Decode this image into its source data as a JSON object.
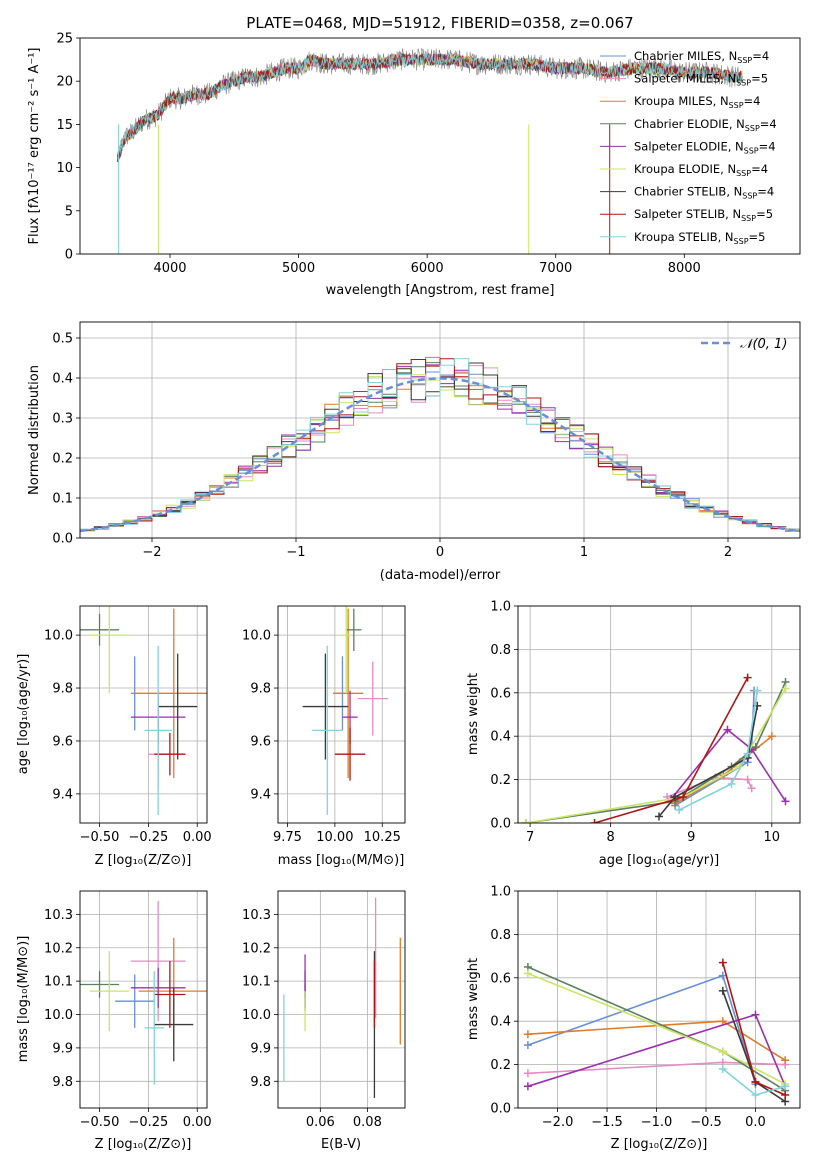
{
  "chart_data": [
    {
      "type": "line",
      "panel": "spectrum",
      "title": "PLATE=0468, MJD=51912, FIBERID=0358, z=0.067",
      "xlabel": "wavelength [Angstrom, rest frame]",
      "ylabel": "Flux [fλ10⁻¹⁷ erg cm⁻² s⁻¹ A⁻¹]",
      "xlim": [
        3300,
        8900
      ],
      "ylim": [
        0,
        25
      ],
      "xticks": [
        4000,
        5000,
        6000,
        7000,
        8000
      ],
      "yticks": [
        0,
        5,
        10,
        15,
        20,
        25
      ],
      "grid": false,
      "legend_position": "right",
      "continuum": {
        "x": [
          3590,
          3650,
          3700,
          3800,
          3900,
          4000,
          4100,
          4200,
          4300,
          4400,
          4500,
          4600,
          4700,
          4800,
          4900,
          5000,
          5100,
          5200,
          5400,
          5600,
          5800,
          6000,
          6200,
          6400,
          6600,
          6800,
          7000,
          7200,
          7400,
          7600,
          7800,
          8000,
          8200,
          8400
        ],
        "y": [
          11,
          13.5,
          14,
          15.5,
          16,
          18,
          18,
          18.5,
          18.5,
          19.5,
          20,
          20.5,
          20.5,
          21,
          21.5,
          21.5,
          22.5,
          22,
          22,
          22,
          22.5,
          22.5,
          22.5,
          22,
          22,
          22,
          21.5,
          21.5,
          21,
          21.5,
          21.5,
          21,
          21,
          20.5
        ]
      },
      "series": [
        {
          "name": "Chabrier MILES, N_SSP=4",
          "color": "#6a8fd6"
        },
        {
          "name": "Salpeter MILES, N_SSP=5",
          "color": "#e68bc3"
        },
        {
          "name": "Kroupa MILES, N_SSP=4",
          "color": "#e07b2a"
        },
        {
          "name": "Chabrier ELODIE, N_SSP=4",
          "color": "#5b8060"
        },
        {
          "name": "Salpeter ELODIE, N_SSP=4",
          "color": "#9b2fae"
        },
        {
          "name": "Kroupa ELODIE, N_SSP=4",
          "color": "#c8e664"
        },
        {
          "name": "Chabrier STELIB, N_SSP=4",
          "color": "#3a3a3a"
        },
        {
          "name": "Salpeter STELIB, N_SSP=5",
          "color": "#b01515"
        },
        {
          "name": "Kroupa STELIB, N_SSP=5",
          "color": "#80d4dc"
        }
      ]
    },
    {
      "type": "line",
      "panel": "residuals",
      "xlabel": "(data-model)/error",
      "ylabel": "Normed distribution",
      "xlim": [
        -2.5,
        2.5
      ],
      "ylim": [
        0,
        0.54
      ],
      "xticks": [
        -2,
        -1,
        0,
        1,
        2
      ],
      "yticks": [
        0.0,
        0.1,
        0.2,
        0.3,
        0.4,
        0.5
      ],
      "grid": true,
      "legend_position": "top-right",
      "reference_label": "𝒩(0, 1)",
      "reference": {
        "mean": 0,
        "sigma": 1
      }
    },
    {
      "type": "scatter",
      "panel": "age-vs-Z",
      "xlabel": "Z [log₁₀(Z/Z⊙)]",
      "ylabel": "age [log₁₀(age/yr)]",
      "xlim": [
        -0.6,
        0.05
      ],
      "ylim": [
        9.29,
        10.11
      ],
      "xticks": [
        -0.5,
        -0.25,
        0.0
      ],
      "yticks": [
        9.4,
        9.6,
        9.8,
        10.0
      ],
      "grid": true,
      "points": [
        {
          "x": -0.32,
          "y": 9.78,
          "xerr": 0.02,
          "yerr": 0.14,
          "color": "#6a8fd6"
        },
        {
          "x": -0.2,
          "y": 9.55,
          "xerr": 0.05,
          "yerr": 0.12,
          "color": "#e68bc3"
        },
        {
          "x": -0.12,
          "y": 9.78,
          "xerr": 0.2,
          "yerr": 0.32,
          "color": "#e07b2a"
        },
        {
          "x": -0.5,
          "y": 10.02,
          "xerr": 0.1,
          "yerr": 0.06,
          "color": "#5b8060"
        },
        {
          "x": -0.2,
          "y": 9.69,
          "xerr": 0.14,
          "yerr": 0.1,
          "color": "#9b2fae"
        },
        {
          "x": -0.45,
          "y": 10.0,
          "xerr": 0.1,
          "yerr": 0.22,
          "color": "#c8e664"
        },
        {
          "x": -0.1,
          "y": 9.73,
          "xerr": 0.1,
          "yerr": 0.2,
          "color": "#3a3a3a"
        },
        {
          "x": -0.14,
          "y": 9.55,
          "xerr": 0.08,
          "yerr": 0.08,
          "color": "#b01515"
        },
        {
          "x": -0.2,
          "y": 9.64,
          "xerr": 0.07,
          "yerr": 0.32,
          "color": "#80d4dc"
        }
      ]
    },
    {
      "type": "scatter",
      "panel": "age-vs-mass",
      "xlabel": "mass [log₁₀(M/M⊙)]",
      "xlim": [
        9.7,
        10.37
      ],
      "ylim": [
        9.29,
        10.11
      ],
      "xticks": [
        9.75,
        10.0,
        10.25
      ],
      "yticks": [
        9.4,
        9.6,
        9.8,
        10.0
      ],
      "grid": true,
      "points": [
        {
          "x": 10.04,
          "y": 9.78,
          "xerr": 0.04,
          "yerr": 0.14,
          "color": "#6a8fd6"
        },
        {
          "x": 10.2,
          "y": 9.76,
          "xerr": 0.08,
          "yerr": 0.14,
          "color": "#e68bc3"
        },
        {
          "x": 10.07,
          "y": 9.78,
          "xerr": 0.08,
          "yerr": 0.32,
          "color": "#e07b2a"
        },
        {
          "x": 10.1,
          "y": 10.02,
          "xerr": 0.04,
          "yerr": 0.08,
          "color": "#5b8060"
        },
        {
          "x": 10.08,
          "y": 9.69,
          "xerr": 0.04,
          "yerr": 0.1,
          "color": "#9b2fae"
        },
        {
          "x": 10.06,
          "y": 10.0,
          "xerr": 0.02,
          "yerr": 0.22,
          "color": "#c8e664"
        },
        {
          "x": 9.95,
          "y": 9.73,
          "xerr": 0.12,
          "yerr": 0.2,
          "color": "#3a3a3a"
        },
        {
          "x": 10.08,
          "y": 9.55,
          "xerr": 0.08,
          "yerr": 0.1,
          "color": "#b01515"
        },
        {
          "x": 9.96,
          "y": 9.64,
          "xerr": 0.08,
          "yerr": 0.32,
          "color": "#80d4dc"
        }
      ]
    },
    {
      "type": "line",
      "panel": "mass-weight-vs-age",
      "xlabel": "age [log₁₀(age/yr)]",
      "ylabel": "mass weight",
      "xlim": [
        6.85,
        10.35
      ],
      "ylim": [
        0,
        1
      ],
      "xticks": [
        7,
        8,
        9,
        10
      ],
      "yticks": [
        0.0,
        0.2,
        0.4,
        0.6,
        0.8,
        1.0
      ],
      "grid": true,
      "series": [
        {
          "color": "#6a8fd6",
          "x": [
            8.8,
            9.7,
            9.75,
            9.78
          ],
          "y": [
            0.08,
            0.28,
            0.35,
            0.61
          ]
        },
        {
          "color": "#e68bc3",
          "x": [
            8.7,
            9.3,
            9.7,
            9.75
          ],
          "y": [
            0.12,
            0.21,
            0.2,
            0.16
          ]
        },
        {
          "color": "#e07b2a",
          "x": [
            8.8,
            9.4,
            9.6,
            10.0
          ],
          "y": [
            0.09,
            0.22,
            0.28,
            0.4
          ]
        },
        {
          "color": "#5b8060",
          "x": [
            6.95,
            8.8,
            9.5,
            9.8,
            10.17
          ],
          "y": [
            0.0,
            0.1,
            0.26,
            0.35,
            0.65
          ]
        },
        {
          "color": "#9b2fae",
          "x": [
            8.75,
            9.45,
            9.75,
            10.17
          ],
          "y": [
            0.11,
            0.43,
            0.34,
            0.1
          ]
        },
        {
          "color": "#c8e664",
          "x": [
            6.95,
            8.9,
            9.6,
            10.17
          ],
          "y": [
            0.0,
            0.12,
            0.26,
            0.62
          ]
        },
        {
          "color": "#3a3a3a",
          "x": [
            8.6,
            8.8,
            9.7,
            9.82
          ],
          "y": [
            0.03,
            0.12,
            0.3,
            0.54
          ]
        },
        {
          "color": "#b01515",
          "x": [
            7.8,
            8.9,
            9.7
          ],
          "y": [
            0.0,
            0.12,
            0.67
          ]
        },
        {
          "color": "#80d4dc",
          "x": [
            8.85,
            9.5,
            9.7,
            9.82
          ],
          "y": [
            0.06,
            0.18,
            0.32,
            0.61
          ]
        }
      ]
    },
    {
      "type": "scatter",
      "panel": "mass-vs-Z",
      "xlabel": "Z [log₁₀(Z/Z⊙)]",
      "ylabel": "mass [log₁₀(M/M⊙)]",
      "xlim": [
        -0.6,
        0.05
      ],
      "ylim": [
        9.72,
        10.37
      ],
      "xticks": [
        -0.5,
        -0.25,
        0.0
      ],
      "yticks": [
        9.8,
        9.9,
        10.0,
        10.1,
        10.2,
        10.3
      ],
      "grid": true,
      "points": [
        {
          "x": -0.32,
          "y": 10.04,
          "xerr": 0.1,
          "yerr": 0.08,
          "color": "#6a8fd6"
        },
        {
          "x": -0.2,
          "y": 10.16,
          "xerr": 0.14,
          "yerr": 0.18,
          "color": "#e68bc3"
        },
        {
          "x": -0.12,
          "y": 10.07,
          "xerr": 0.18,
          "yerr": 0.16,
          "color": "#e07b2a"
        },
        {
          "x": -0.5,
          "y": 10.09,
          "xerr": 0.1,
          "yerr": 0.04,
          "color": "#5b8060"
        },
        {
          "x": -0.2,
          "y": 10.08,
          "xerr": 0.14,
          "yerr": 0.06,
          "color": "#9b2fae"
        },
        {
          "x": -0.45,
          "y": 10.07,
          "xerr": 0.1,
          "yerr": 0.12,
          "color": "#c8e664"
        },
        {
          "x": -0.12,
          "y": 9.97,
          "xerr": 0.1,
          "yerr": 0.11,
          "color": "#3a3a3a"
        },
        {
          "x": -0.14,
          "y": 10.06,
          "xerr": 0.08,
          "yerr": 0.1,
          "color": "#b01515"
        },
        {
          "x": -0.22,
          "y": 9.96,
          "xerr": 0.05,
          "yerr": 0.17,
          "color": "#80d4dc"
        }
      ]
    },
    {
      "type": "scatter",
      "panel": "mass-vs-EBV",
      "xlabel": "E(B-V)",
      "xlim": [
        0.042,
        0.096
      ],
      "ylim": [
        9.72,
        10.37
      ],
      "xticks": [
        0.06,
        0.08
      ],
      "yticks": [
        9.8,
        9.9,
        10.0,
        10.1,
        10.2,
        10.3
      ],
      "grid": true,
      "points": [
        {
          "x": 0.0535,
          "y": 10.05,
          "yerr": 0.04,
          "color": "#6a8fd6"
        },
        {
          "x": 0.0835,
          "y": 10.17,
          "yerr": 0.18,
          "color": "#e68bc3"
        },
        {
          "x": 0.094,
          "y": 10.07,
          "yerr": 0.16,
          "color": "#e07b2a"
        },
        {
          "x": 0.0535,
          "y": 10.09,
          "yerr": 0.04,
          "color": "#5b8060"
        },
        {
          "x": 0.0535,
          "y": 10.1,
          "yerr": 0.08,
          "color": "#9b2fae"
        },
        {
          "x": 0.0535,
          "y": 10.01,
          "yerr": 0.06,
          "color": "#c8e664"
        },
        {
          "x": 0.083,
          "y": 9.97,
          "yerr": 0.22,
          "color": "#3a3a3a"
        },
        {
          "x": 0.083,
          "y": 10.06,
          "yerr": 0.1,
          "color": "#b01515"
        },
        {
          "x": 0.0445,
          "y": 9.93,
          "yerr": 0.13,
          "color": "#80d4dc"
        }
      ]
    },
    {
      "type": "line",
      "panel": "mass-weight-vs-Z",
      "xlabel": "Z [log₁₀(Z/Z⊙)]",
      "ylabel": "mass weight",
      "xlim": [
        -2.4,
        0.45
      ],
      "ylim": [
        0,
        1
      ],
      "xticks": [
        -2.0,
        -1.5,
        -1.0,
        -0.5,
        0.0
      ],
      "yticks": [
        0.0,
        0.2,
        0.4,
        0.6,
        0.8,
        1.0
      ],
      "grid": true,
      "series": [
        {
          "color": "#6a8fd6",
          "x": [
            -2.3,
            -0.33,
            0.0
          ],
          "y": [
            0.29,
            0.61,
            0.11
          ]
        },
        {
          "color": "#e68bc3",
          "x": [
            -2.3,
            -0.33,
            0.3
          ],
          "y": [
            0.16,
            0.21,
            0.2
          ]
        },
        {
          "color": "#e07b2a",
          "x": [
            -2.3,
            -0.33,
            0.3
          ],
          "y": [
            0.34,
            0.4,
            0.22
          ]
        },
        {
          "color": "#5b8060",
          "x": [
            -2.3,
            -0.33,
            0.3
          ],
          "y": [
            0.65,
            0.26,
            0.08
          ]
        },
        {
          "color": "#9b2fae",
          "x": [
            -2.3,
            0.0,
            0.3
          ],
          "y": [
            0.1,
            0.43,
            0.1
          ]
        },
        {
          "color": "#c8e664",
          "x": [
            -2.3,
            -0.33,
            0.3
          ],
          "y": [
            0.62,
            0.26,
            0.11
          ]
        },
        {
          "color": "#3a3a3a",
          "x": [
            -0.33,
            0.0,
            0.3
          ],
          "y": [
            0.54,
            0.12,
            0.03
          ]
        },
        {
          "color": "#b01515",
          "x": [
            -0.33,
            0.0,
            0.3
          ],
          "y": [
            0.67,
            0.12,
            0.06
          ]
        },
        {
          "color": "#80d4dc",
          "x": [
            -0.33,
            0.0,
            0.3
          ],
          "y": [
            0.18,
            0.06,
            0.1
          ]
        }
      ]
    }
  ]
}
